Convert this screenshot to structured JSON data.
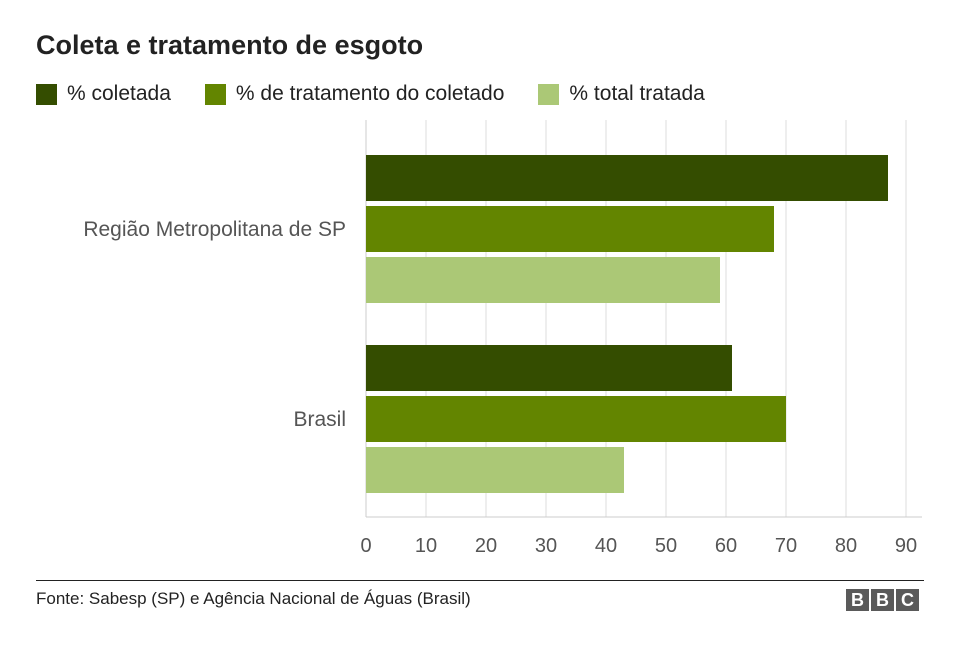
{
  "chart_data": {
    "type": "bar",
    "orientation": "horizontal",
    "title": "Coleta e tratamento de esgoto",
    "categories": [
      "Região Metropolitana de SP",
      "Brasil"
    ],
    "series": [
      {
        "name": "% coletada",
        "color": "#344d00",
        "values": [
          87,
          61
        ]
      },
      {
        "name": "% de tratamento do coletado",
        "color": "#638500",
        "values": [
          68,
          70
        ]
      },
      {
        "name": "% total tratada",
        "color": "#abc876",
        "values": [
          59,
          43
        ]
      }
    ],
    "xlim": [
      0,
      93
    ],
    "xticks": [
      0,
      10,
      20,
      30,
      40,
      50,
      60,
      70,
      80,
      90
    ],
    "grid": true,
    "legend_position": "top"
  },
  "source": "Fonte: Sabesp (SP) e Agência Nacional de Águas (Brasil)",
  "logo": [
    "B",
    "B",
    "C"
  ]
}
